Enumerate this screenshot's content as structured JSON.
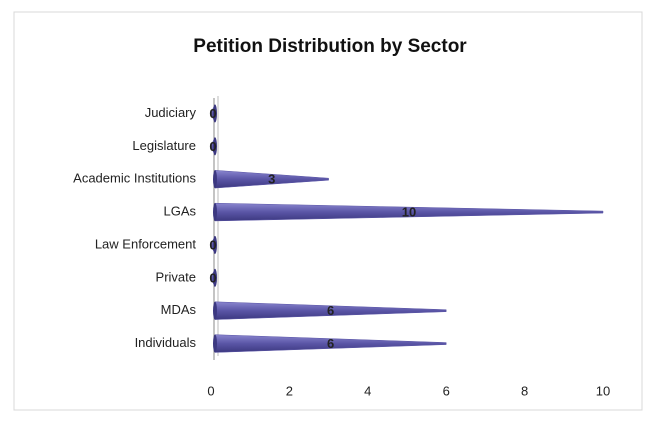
{
  "chart_data": {
    "type": "bar",
    "orientation": "horizontal",
    "title": "Petition Distribution by Sector",
    "categories": [
      "Judiciary",
      "Legislature",
      "Academic Institutions",
      "LGAs",
      "Law Enforcement",
      "Private",
      "MDAs",
      "Individuals"
    ],
    "values": [
      0,
      0,
      3,
      10,
      0,
      0,
      6,
      6
    ],
    "color": "#5a55a6",
    "xlim": [
      0,
      10
    ],
    "xticks": [
      0,
      2,
      4,
      6,
      8,
      10
    ],
    "grid": false,
    "data_labels": true
  }
}
